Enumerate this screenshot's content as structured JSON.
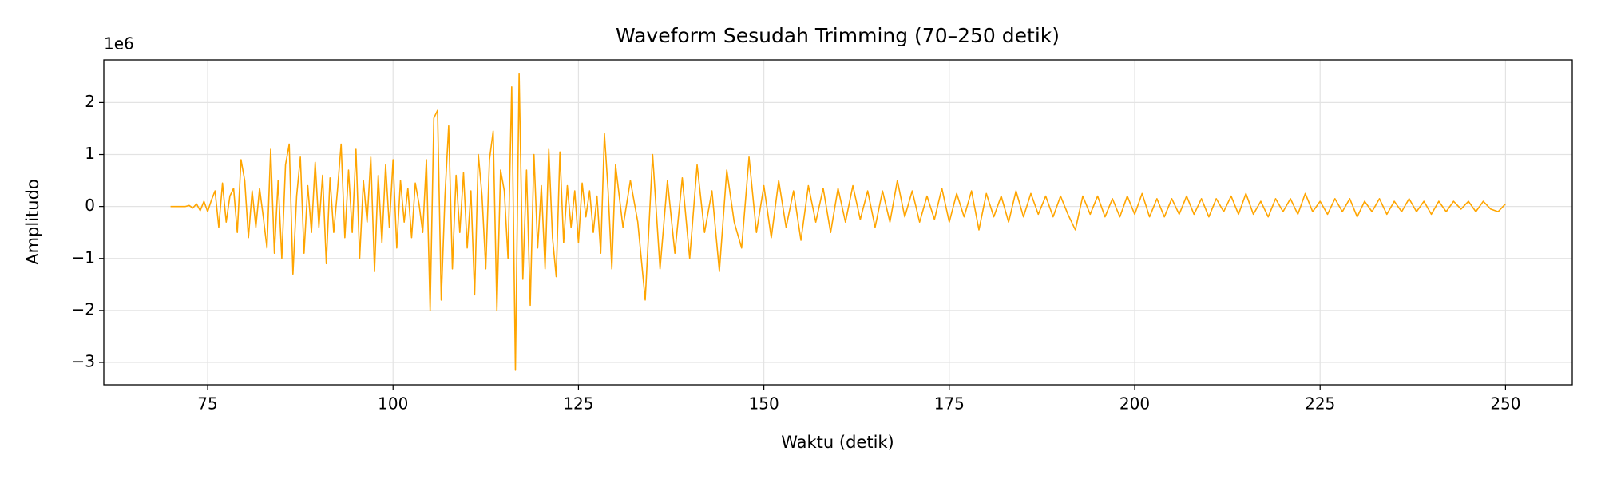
{
  "chart_data": {
    "type": "line",
    "title": "Waveform Sesudah Trimming (70–250 detik)",
    "xlabel": "Waktu (detik)",
    "ylabel": "Amplitudo",
    "y_offset_label": "1e6",
    "grid": true,
    "xlim": [
      61,
      259
    ],
    "ylim": [
      -3.43,
      2.82
    ],
    "xticks": [
      75,
      100,
      125,
      150,
      175,
      200,
      225,
      250
    ],
    "yticks": [
      {
        "value": -3,
        "label": "−3"
      },
      {
        "value": -2,
        "label": "−2"
      },
      {
        "value": -1,
        "label": "−1"
      },
      0,
      1,
      2
    ],
    "x": [
      70,
      70.5,
      71,
      71.5,
      72,
      72.5,
      73,
      73.5,
      74,
      74.5,
      75,
      75.5,
      76,
      76.5,
      77,
      77.5,
      78,
      78.5,
      79,
      79.5,
      80,
      80.5,
      81,
      81.5,
      82,
      82.5,
      83,
      83.5,
      84,
      84.5,
      85,
      85.5,
      86,
      86.5,
      87,
      87.5,
      88,
      88.5,
      89,
      89.5,
      90,
      90.5,
      91,
      91.5,
      92,
      92.5,
      93,
      93.5,
      94,
      94.5,
      95,
      95.5,
      96,
      96.5,
      97,
      97.5,
      98,
      98.5,
      99,
      99.5,
      100,
      100.5,
      101,
      101.5,
      102,
      102.5,
      103,
      103.5,
      104,
      104.5,
      105,
      105.5,
      106,
      106.5,
      107,
      107.5,
      108,
      108.5,
      109,
      109.5,
      110,
      110.5,
      111,
      111.5,
      112,
      112.5,
      113,
      113.5,
      114,
      114.5,
      115,
      115.5,
      116,
      116.5,
      117,
      117.5,
      118,
      118.5,
      119,
      119.5,
      120,
      120.5,
      121,
      121.5,
      122,
      122.5,
      123,
      123.5,
      124,
      124.5,
      125,
      125.5,
      126,
      126.5,
      127,
      127.5,
      128,
      128.5,
      129,
      129.5,
      130,
      131,
      132,
      133,
      134,
      135,
      136,
      137,
      138,
      139,
      140,
      141,
      142,
      143,
      144,
      145,
      146,
      147,
      148,
      149,
      150,
      151,
      152,
      153,
      154,
      155,
      156,
      157,
      158,
      159,
      160,
      161,
      162,
      163,
      164,
      165,
      166,
      167,
      168,
      169,
      170,
      171,
      172,
      173,
      174,
      175,
      176,
      177,
      178,
      179,
      180,
      181,
      182,
      183,
      184,
      185,
      186,
      187,
      188,
      189,
      190,
      191,
      192,
      193,
      194,
      195,
      196,
      197,
      198,
      199,
      200,
      201,
      202,
      203,
      204,
      205,
      206,
      207,
      208,
      209,
      210,
      211,
      212,
      213,
      214,
      215,
      216,
      217,
      218,
      219,
      220,
      221,
      222,
      223,
      224,
      225,
      226,
      227,
      228,
      229,
      230,
      231,
      232,
      233,
      234,
      235,
      236,
      237,
      238,
      239,
      240,
      241,
      242,
      243,
      244,
      245,
      246,
      247,
      248,
      249,
      250
    ],
    "series": [
      {
        "color": "#ffa500",
        "values": [
          0,
          0,
          0,
          0,
          0,
          0.02,
          -0.03,
          0.05,
          -0.08,
          0.1,
          -0.1,
          0.12,
          0.3,
          -0.4,
          0.45,
          -0.3,
          0.2,
          0.35,
          -0.5,
          0.9,
          0.5,
          -0.6,
          0.3,
          -0.4,
          0.35,
          -0.2,
          -0.8,
          1.1,
          -0.9,
          0.5,
          -1.0,
          0.8,
          1.2,
          -1.3,
          0.2,
          0.95,
          -0.9,
          0.4,
          -0.5,
          0.85,
          -0.4,
          0.6,
          -1.1,
          0.55,
          -0.5,
          0.3,
          1.2,
          -0.6,
          0.7,
          -0.5,
          1.1,
          -1.0,
          0.5,
          -0.3,
          0.95,
          -1.25,
          0.6,
          -0.7,
          0.8,
          -0.4,
          0.9,
          -0.8,
          0.5,
          -0.3,
          0.35,
          -0.6,
          0.45,
          0.05,
          -0.5,
          0.9,
          -2.0,
          1.7,
          1.85,
          -1.8,
          0.2,
          1.55,
          -1.2,
          0.6,
          -0.5,
          0.65,
          -0.8,
          0.3,
          -1.7,
          1.0,
          0.2,
          -1.2,
          0.9,
          1.45,
          -2.0,
          0.7,
          0.3,
          -1.0,
          2.3,
          -3.15,
          2.55,
          -1.4,
          0.7,
          -1.9,
          1.0,
          -0.8,
          0.4,
          -1.2,
          1.1,
          -0.6,
          -1.35,
          1.05,
          -0.7,
          0.4,
          -0.4,
          0.3,
          -0.7,
          0.45,
          -0.2,
          0.3,
          -0.5,
          0.2,
          -0.9,
          1.4,
          0.3,
          -1.2,
          0.8,
          -0.4,
          0.5,
          -0.3,
          -1.8,
          1.0,
          -1.2,
          0.5,
          -0.9,
          0.55,
          -1.0,
          0.8,
          -0.5,
          0.3,
          -1.25,
          0.7,
          -0.3,
          -0.8,
          0.95,
          -0.5,
          0.4,
          -0.6,
          0.5,
          -0.4,
          0.3,
          -0.65,
          0.4,
          -0.3,
          0.35,
          -0.5,
          0.35,
          -0.3,
          0.4,
          -0.25,
          0.3,
          -0.4,
          0.3,
          -0.3,
          0.5,
          -0.2,
          0.3,
          -0.3,
          0.2,
          -0.25,
          0.35,
          -0.3,
          0.25,
          -0.2,
          0.3,
          -0.45,
          0.25,
          -0.2,
          0.2,
          -0.3,
          0.3,
          -0.2,
          0.25,
          -0.15,
          0.2,
          -0.2,
          0.2,
          -0.15,
          -0.45,
          0.2,
          -0.15,
          0.2,
          -0.2,
          0.15,
          -0.2,
          0.2,
          -0.15,
          0.25,
          -0.2,
          0.15,
          -0.2,
          0.15,
          -0.15,
          0.2,
          -0.15,
          0.15,
          -0.2,
          0.15,
          -0.1,
          0.2,
          -0.15,
          0.25,
          -0.15,
          0.1,
          -0.2,
          0.15,
          -0.1,
          0.15,
          -0.15,
          0.25,
          -0.1,
          0.1,
          -0.15,
          0.15,
          -0.1,
          0.15,
          -0.2,
          0.1,
          -0.1,
          0.15,
          -0.15,
          0.1,
          -0.1,
          0.15,
          -0.1,
          0.1,
          -0.15,
          0.1,
          -0.1,
          0.1,
          -0.05,
          0.1,
          -0.1,
          0.1,
          -0.05,
          -0.1,
          0.05
        ]
      }
    ]
  }
}
